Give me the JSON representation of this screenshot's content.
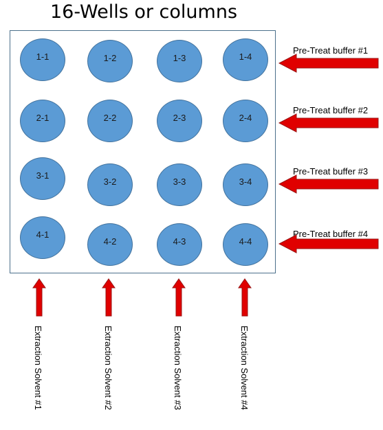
{
  "title": "16-Wells or columns",
  "wells": [
    [
      "1-1",
      "1-2",
      "1-3",
      "1-4"
    ],
    [
      "2-1",
      "2-2",
      "2-3",
      "2-4"
    ],
    [
      "3-1",
      "3-2",
      "3-3",
      "3-4"
    ],
    [
      "4-1",
      "4-2",
      "4-3",
      "4-4"
    ]
  ],
  "buffers": [
    "Pre-Treat buffer #1",
    "Pre-Treat buffer #2",
    "Pre-Treat buffer #3",
    "Pre-Treat buffer #4"
  ],
  "solvents": [
    "Extraction Solvent #1",
    "Extraction Solvent #2",
    "Extraction Solvent #3",
    "Extraction Solvent #4"
  ],
  "colors": {
    "well_fill": "#5b9bd5",
    "well_border": "#41719c",
    "arrow_fill": "#e00000",
    "arrow_border": "#9a1414"
  }
}
